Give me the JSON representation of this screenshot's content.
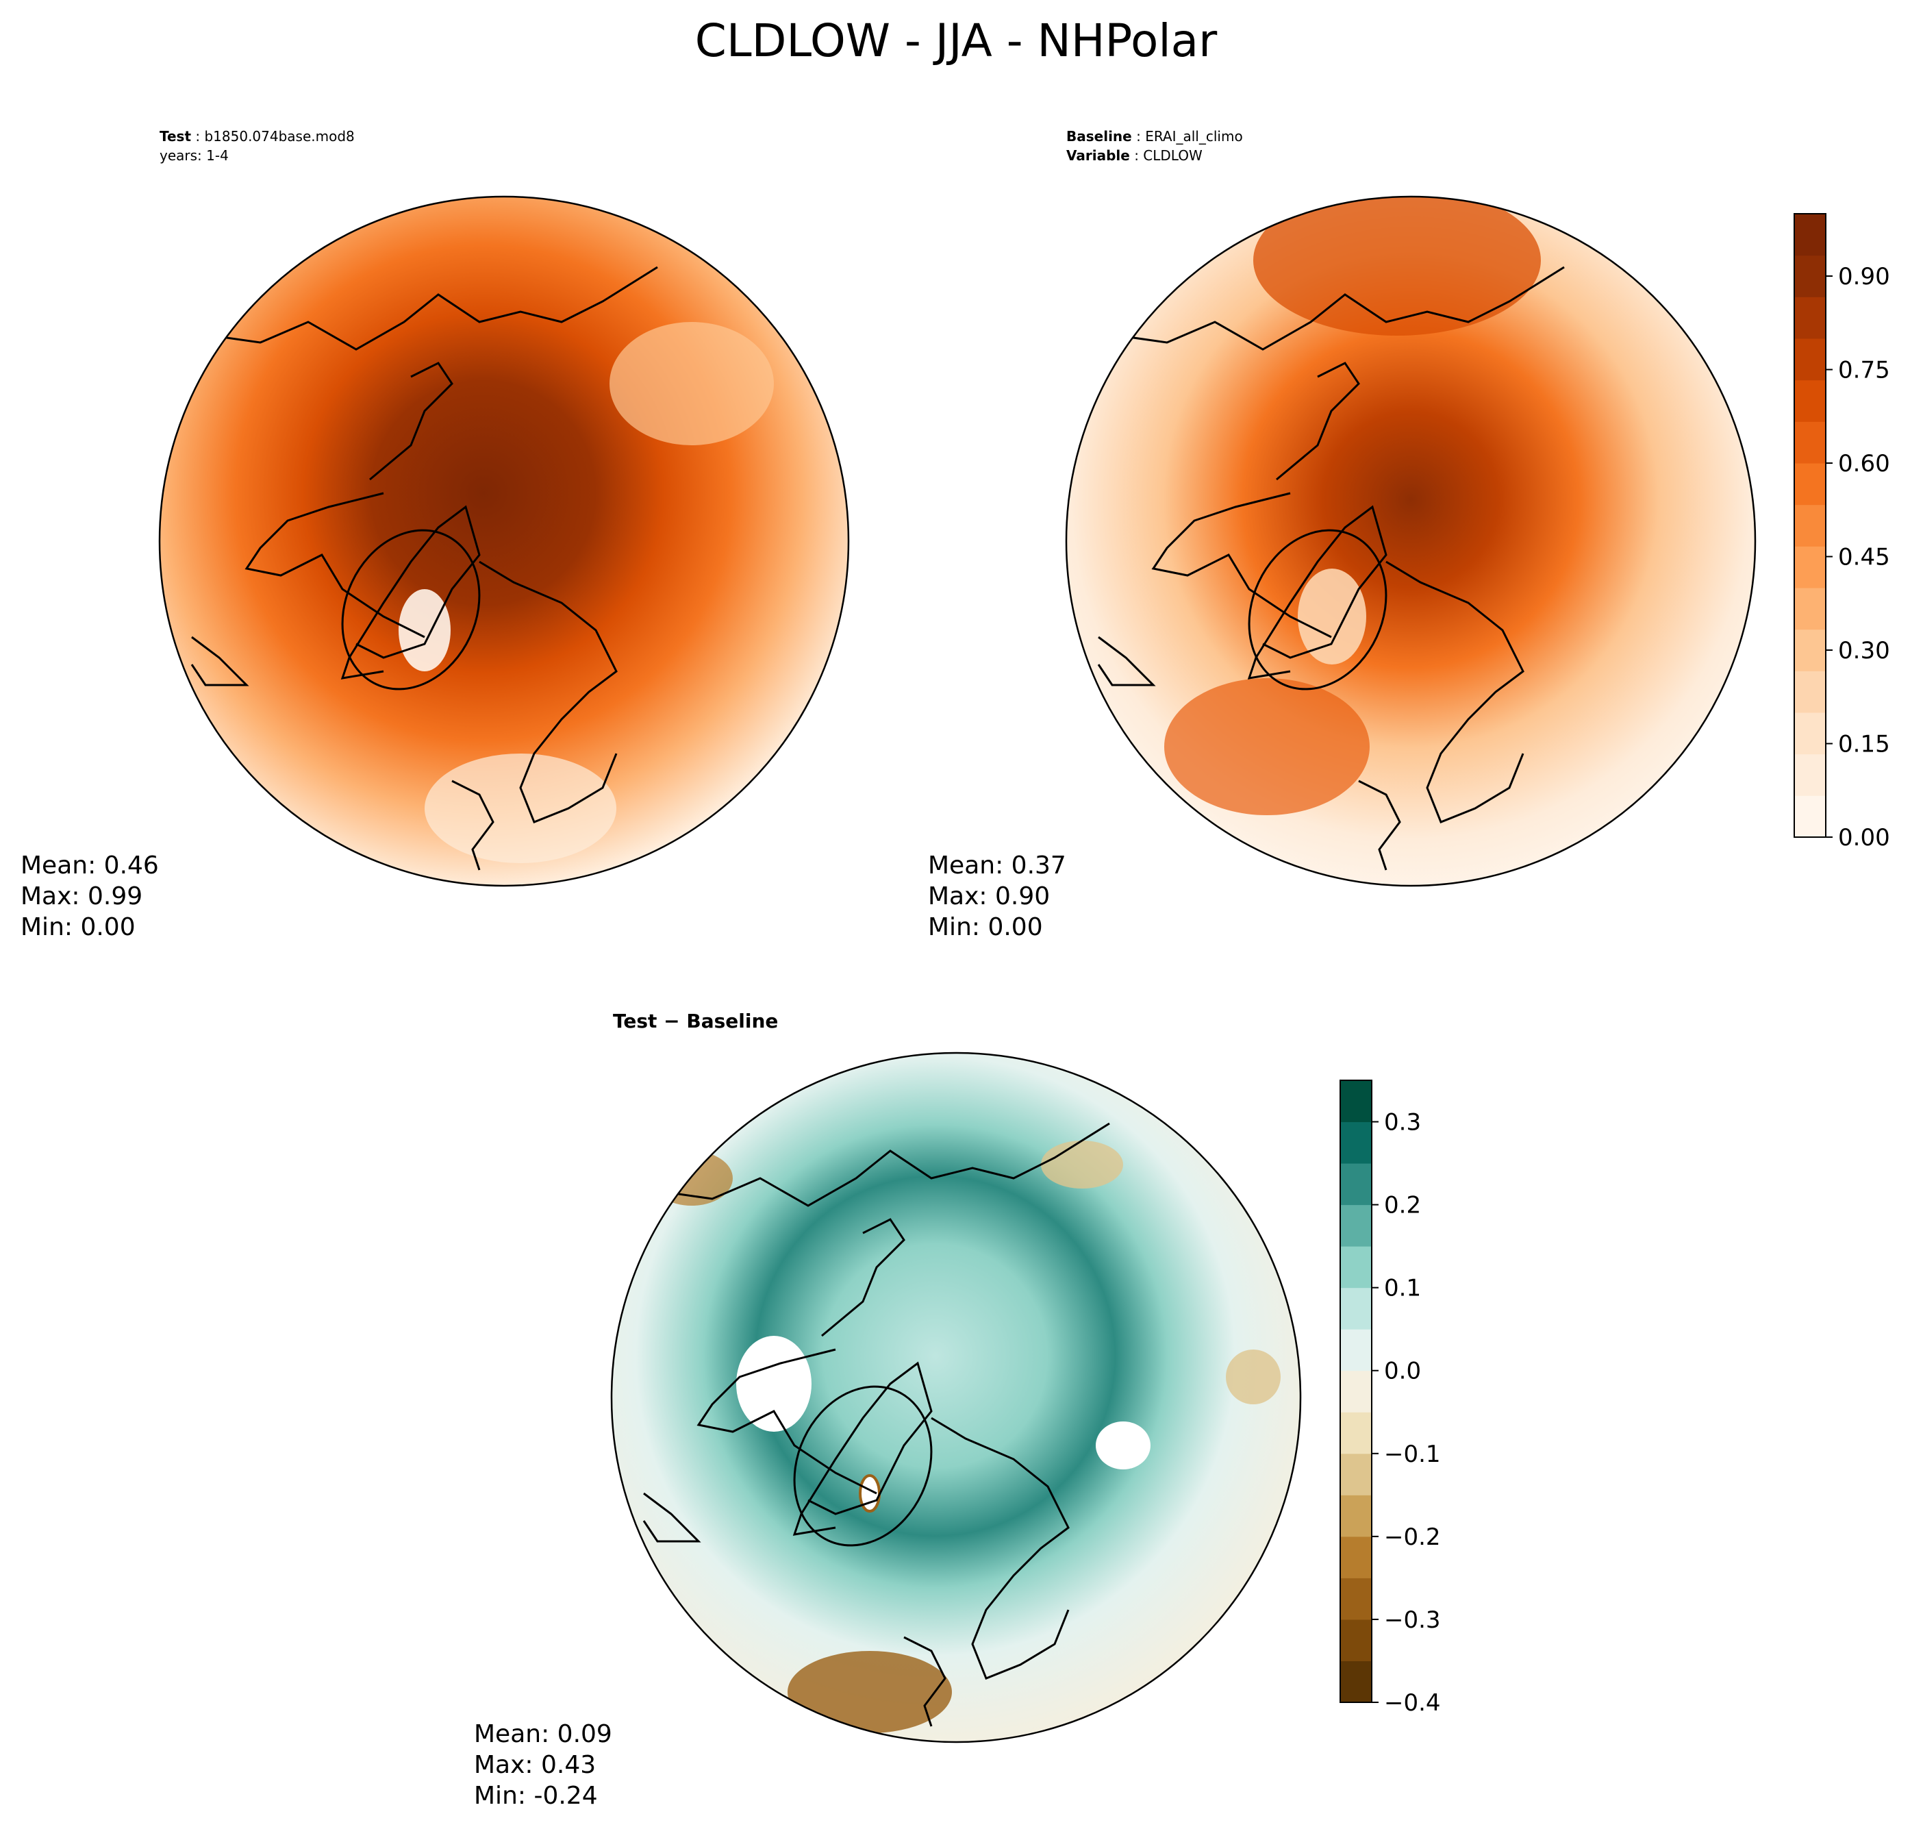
{
  "figure": {
    "title": "CLDLOW - JJA - NHPolar"
  },
  "chart_data": [
    {
      "type": "contour-map",
      "panel": "test",
      "projection": "North Polar Stereographic",
      "header": {
        "label": "Test",
        "value": "b1850.074base.mod8",
        "line2": "years: 1-4"
      },
      "stats": {
        "mean": "Mean:  0.46",
        "max": "Max:  0.99",
        "min": "Min:  0.00"
      },
      "colormap": "Oranges",
      "pole_high": 0.95,
      "equator_low": 0.05
    },
    {
      "type": "contour-map",
      "panel": "baseline",
      "projection": "North Polar Stereographic",
      "header": {
        "label": "Baseline",
        "value": "ERAI_all_climo",
        "label2": "Variable",
        "value2": "CLDLOW"
      },
      "stats": {
        "mean": "Mean:  0.37",
        "max": "Max:  0.90",
        "min": "Min:  0.00"
      },
      "colormap": "Oranges",
      "pole_high": 0.85,
      "equator_low": 0.05,
      "colorbar": {
        "range": [
          0.0,
          1.0
        ],
        "ticks": [
          "0.00",
          "0.15",
          "0.30",
          "0.45",
          "0.60",
          "0.75",
          "0.90"
        ],
        "tick_values": [
          0.0,
          0.15,
          0.3,
          0.45,
          0.6,
          0.75,
          0.9
        ],
        "levels": 20,
        "colors": [
          "#fff5eb",
          "#feecda",
          "#fee3c8",
          "#fdd5af",
          "#fdc692",
          "#fdb272",
          "#fd9e54",
          "#f98a3a",
          "#f47420",
          "#e86011",
          "#d94f04",
          "#c04102",
          "#a83703",
          "#8e2e04",
          "#7f2704"
        ]
      }
    },
    {
      "type": "contour-map",
      "panel": "difference",
      "projection": "North Polar Stereographic",
      "header": {
        "label": "Test − Baseline"
      },
      "stats": {
        "mean": "Mean:  0.09",
        "max": "Max:  0.43",
        "min": "Min: -0.24"
      },
      "colormap": "BrBG",
      "colorbar": {
        "range": [
          -0.4,
          0.35
        ],
        "ticks": [
          "0.3",
          "0.2",
          "0.1",
          "0.0",
          "−0.1",
          "−0.2",
          "−0.3",
          "−0.4"
        ],
        "tick_values": [
          0.3,
          0.2,
          0.1,
          0.0,
          -0.1,
          -0.2,
          -0.3,
          -0.4
        ],
        "levels": [
          -0.4,
          -0.35,
          -0.3,
          -0.25,
          -0.2,
          -0.15,
          -0.1,
          -0.05,
          0.0,
          0.05,
          0.1,
          0.15,
          0.2,
          0.25,
          0.3,
          0.35
        ],
        "colors": [
          "#5c3605",
          "#7d4a0b",
          "#9b6118",
          "#b67d2d",
          "#cba258",
          "#dec58e",
          "#efe1bb",
          "#f5efdf",
          "#e4f2ef",
          "#bfe6e0",
          "#8fd2c6",
          "#5db0a5",
          "#2e8b82",
          "#0a6c62",
          "#00503f"
        ]
      }
    }
  ]
}
